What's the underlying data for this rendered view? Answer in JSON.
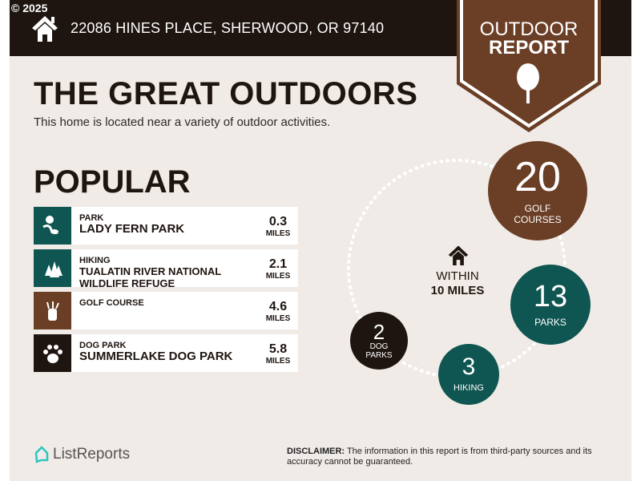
{
  "copyright": "© 2025",
  "address": "22086 HINES PLACE, SHERWOOD, OR 97140",
  "badge": {
    "line1": "OUTDOOR",
    "line2": "REPORT",
    "icon": "tree-icon"
  },
  "title": "THE GREAT OUTDOORS",
  "subtitle": "This home is located near a variety of outdoor activities.",
  "popular": {
    "heading": "POPULAR",
    "items": [
      {
        "category": "PARK",
        "name": "LADY FERN PARK",
        "distance": "0.3",
        "unit": "MILES",
        "icon": "park-icon",
        "color": "#0f5552"
      },
      {
        "category": "HIKING",
        "name": "TUALATIN RIVER NATIONAL WILDLIFE REFUGE",
        "distance": "2.1",
        "unit": "MILES",
        "icon": "trees-icon",
        "color": "#0f5552"
      },
      {
        "category": "GOLF COURSE",
        "name": "",
        "distance": "4.6",
        "unit": "MILES",
        "icon": "golf-bag-icon",
        "color": "#6b3e26"
      },
      {
        "category": "DOG PARK",
        "name": "SUMMERLAKE DOG PARK",
        "distance": "5.8",
        "unit": "MILES",
        "icon": "paw-icon",
        "color": "#1e1510"
      }
    ]
  },
  "radius": {
    "line1": "WITHIN",
    "line2": "10 MILES"
  },
  "counts": [
    {
      "value": "20",
      "label1": "GOLF",
      "label2": "COURSES",
      "color": "#6b3e26"
    },
    {
      "value": "13",
      "label1": "PARKS",
      "label2": "",
      "color": "#0f5552"
    },
    {
      "value": "3",
      "label1": "HIKING",
      "label2": "",
      "color": "#0f5552"
    },
    {
      "value": "2",
      "label1": "DOG",
      "label2": "PARKS",
      "color": "#1e1510"
    }
  ],
  "footer": {
    "logo": "ListReports",
    "disclaimer_label": "DISCLAIMER:",
    "disclaimer": " The information in this report is from third-party sources and its accuracy cannot be guaranteed."
  }
}
